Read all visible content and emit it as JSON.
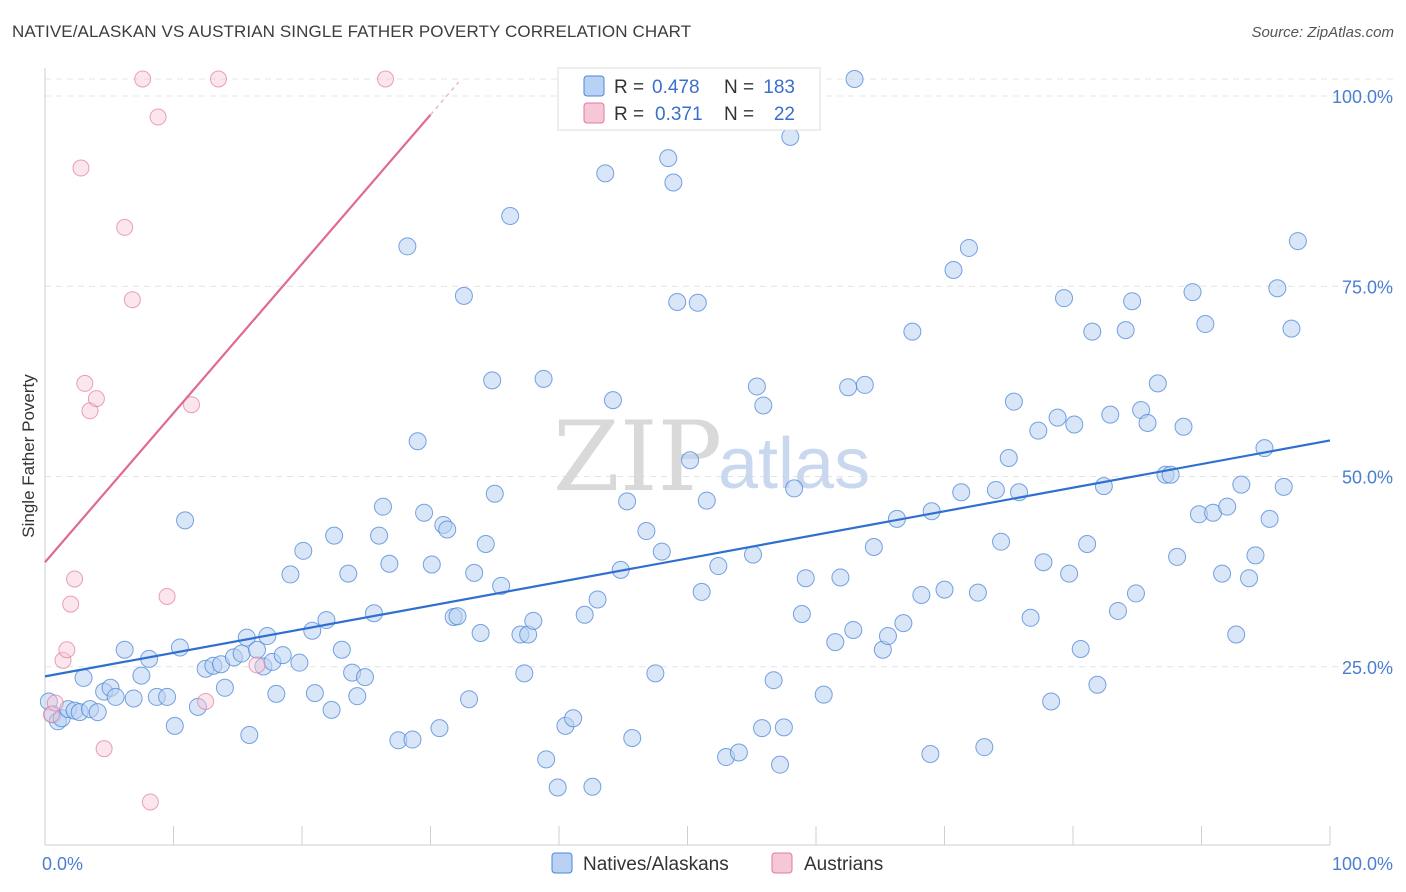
{
  "title": "NATIVE/ALASKAN VS AUSTRIAN SINGLE FATHER POVERTY CORRELATION CHART",
  "source": "Source: ZipAtlas.com",
  "watermark": {
    "zip": "ZIP",
    "atlas": "atlas"
  },
  "colors": {
    "blue": "#4a86d8",
    "blue_fill": "#b9d2f3",
    "pink": "#e07aa0",
    "pink_fill": "#f6c7d6",
    "tick_text": "#4a7fd0"
  },
  "chart_data": {
    "type": "scatter",
    "title": "NATIVE/ALASKAN VS AUSTRIAN SINGLE FATHER POVERTY CORRELATION CHART",
    "xlabel": "",
    "ylabel": "Single Father Poverty",
    "xlim": [
      0,
      100
    ],
    "ylim": [
      0,
      100
    ],
    "x_tick_labels": [
      "0.0%",
      "100.0%"
    ],
    "y_ticks": [
      25,
      50,
      75,
      100
    ],
    "y_tick_labels": [
      "25.0%",
      "50.0%",
      "75.0%",
      "100.0%"
    ],
    "grid": true,
    "legend_top": [
      {
        "r_label": "R =",
        "r_value": "0.478",
        "n_label": "N =",
        "n_value": "183"
      },
      {
        "r_label": "R =",
        "r_value": "0.371",
        "n_label": "N =",
        "n_value": "22"
      }
    ],
    "series": [
      {
        "name": "Natives/Alaskans",
        "trend": {
          "x": [
            0,
            100
          ],
          "y": [
            21.5,
            52.5
          ]
        },
        "points": [
          [
            0.3,
            18.2
          ],
          [
            0.6,
            16.5
          ],
          [
            1.0,
            15.6
          ],
          [
            1.3,
            16.0
          ],
          [
            1.8,
            17.2
          ],
          [
            2.3,
            17.0
          ],
          [
            2.7,
            16.8
          ],
          [
            3.0,
            21.3
          ],
          [
            3.5,
            17.2
          ],
          [
            4.1,
            16.8
          ],
          [
            4.6,
            19.5
          ],
          [
            5.1,
            20.0
          ],
          [
            5.5,
            18.8
          ],
          [
            6.2,
            25.0
          ],
          [
            6.9,
            18.6
          ],
          [
            7.5,
            21.6
          ],
          [
            8.1,
            23.8
          ],
          [
            8.7,
            18.8
          ],
          [
            9.5,
            18.8
          ],
          [
            10.1,
            15.0
          ],
          [
            10.5,
            25.3
          ],
          [
            10.9,
            42.0
          ],
          [
            11.9,
            17.5
          ],
          [
            12.5,
            22.5
          ],
          [
            13.1,
            22.9
          ],
          [
            13.7,
            23.1
          ],
          [
            14.0,
            20.0
          ],
          [
            14.7,
            24.0
          ],
          [
            15.3,
            24.5
          ],
          [
            15.7,
            26.6
          ],
          [
            15.9,
            13.8
          ],
          [
            16.5,
            25.0
          ],
          [
            17.0,
            22.8
          ],
          [
            17.3,
            26.8
          ],
          [
            17.7,
            23.4
          ],
          [
            18.5,
            24.3
          ],
          [
            18.0,
            19.2
          ],
          [
            19.1,
            34.9
          ],
          [
            19.8,
            23.3
          ],
          [
            20.1,
            38.0
          ],
          [
            20.8,
            27.5
          ],
          [
            21.0,
            19.3
          ],
          [
            21.9,
            28.9
          ],
          [
            22.3,
            17.1
          ],
          [
            22.5,
            40.0
          ],
          [
            23.1,
            25.0
          ],
          [
            23.6,
            35.0
          ],
          [
            23.9,
            22.0
          ],
          [
            24.3,
            18.9
          ],
          [
            24.9,
            21.4
          ],
          [
            25.6,
            29.8
          ],
          [
            26.0,
            40.0
          ],
          [
            26.3,
            43.8
          ],
          [
            26.8,
            36.3
          ],
          [
            27.5,
            13.1
          ],
          [
            28.2,
            78.0
          ],
          [
            28.6,
            13.2
          ],
          [
            29.0,
            52.4
          ],
          [
            29.5,
            43.0
          ],
          [
            30.1,
            36.2
          ],
          [
            30.7,
            14.7
          ],
          [
            31.0,
            41.4
          ],
          [
            31.3,
            40.8
          ],
          [
            31.8,
            29.3
          ],
          [
            32.1,
            29.4
          ],
          [
            32.6,
            71.5
          ],
          [
            33.0,
            18.5
          ],
          [
            33.4,
            35.1
          ],
          [
            33.9,
            27.2
          ],
          [
            34.3,
            38.9
          ],
          [
            34.8,
            60.4
          ],
          [
            35.0,
            45.5
          ],
          [
            35.5,
            33.4
          ],
          [
            36.2,
            82.0
          ],
          [
            37.0,
            27.0
          ],
          [
            37.3,
            21.9
          ],
          [
            37.6,
            27.0
          ],
          [
            38.0,
            28.8
          ],
          [
            38.8,
            60.6
          ],
          [
            39.0,
            10.6
          ],
          [
            39.9,
            6.9
          ],
          [
            40.5,
            15.0
          ],
          [
            41.1,
            16.0
          ],
          [
            42.0,
            29.6
          ],
          [
            42.6,
            7.0
          ],
          [
            43.0,
            31.6
          ],
          [
            43.6,
            87.6
          ],
          [
            44.2,
            57.8
          ],
          [
            44.8,
            35.5
          ],
          [
            45.3,
            44.5
          ],
          [
            45.7,
            13.4
          ],
          [
            46.8,
            40.6
          ],
          [
            47.5,
            21.9
          ],
          [
            48.0,
            37.9
          ],
          [
            48.5,
            89.6
          ],
          [
            48.9,
            86.4
          ],
          [
            49.2,
            70.7
          ],
          [
            50.2,
            49.9
          ],
          [
            50.8,
            70.6
          ],
          [
            51.1,
            32.6
          ],
          [
            51.5,
            44.6
          ],
          [
            52.4,
            36.0
          ],
          [
            53.0,
            10.9
          ],
          [
            54.0,
            11.5
          ],
          [
            55.1,
            37.5
          ],
          [
            55.4,
            59.6
          ],
          [
            55.8,
            14.7
          ],
          [
            55.9,
            57.1
          ],
          [
            56.7,
            21.0
          ],
          [
            57.2,
            9.9
          ],
          [
            57.5,
            14.8
          ],
          [
            58.0,
            92.4
          ],
          [
            58.3,
            46.2
          ],
          [
            58.9,
            29.7
          ],
          [
            59.2,
            34.4
          ],
          [
            60.6,
            19.1
          ],
          [
            61.5,
            26.0
          ],
          [
            61.9,
            34.5
          ],
          [
            62.5,
            59.5
          ],
          [
            62.9,
            27.6
          ],
          [
            63.0,
            100.0
          ],
          [
            63.8,
            59.8
          ],
          [
            64.5,
            38.5
          ],
          [
            65.2,
            25.0
          ],
          [
            65.6,
            26.8
          ],
          [
            66.3,
            42.2
          ],
          [
            66.8,
            28.5
          ],
          [
            67.5,
            66.8
          ],
          [
            68.2,
            32.2
          ],
          [
            68.9,
            11.3
          ],
          [
            69.0,
            43.2
          ],
          [
            70.0,
            32.9
          ],
          [
            70.7,
            74.9
          ],
          [
            71.3,
            45.7
          ],
          [
            71.9,
            77.8
          ],
          [
            72.6,
            32.5
          ],
          [
            73.1,
            12.2
          ],
          [
            74.0,
            46.0
          ],
          [
            74.4,
            39.2
          ],
          [
            75.0,
            50.2
          ],
          [
            75.4,
            57.6
          ],
          [
            75.8,
            45.7
          ],
          [
            76.7,
            29.2
          ],
          [
            77.3,
            53.8
          ],
          [
            77.7,
            36.5
          ],
          [
            78.3,
            18.2
          ],
          [
            78.8,
            55.5
          ],
          [
            79.3,
            71.2
          ],
          [
            79.7,
            35.0
          ],
          [
            80.1,
            54.6
          ],
          [
            80.6,
            25.1
          ],
          [
            81.1,
            38.9
          ],
          [
            81.5,
            66.8
          ],
          [
            81.9,
            20.4
          ],
          [
            82.4,
            46.5
          ],
          [
            82.9,
            55.9
          ],
          [
            83.5,
            30.1
          ],
          [
            84.1,
            67.0
          ],
          [
            84.6,
            70.8
          ],
          [
            84.9,
            32.4
          ],
          [
            85.3,
            56.5
          ],
          [
            85.8,
            54.8
          ],
          [
            86.6,
            60.0
          ],
          [
            87.2,
            48.0
          ],
          [
            87.6,
            48.0
          ],
          [
            88.1,
            37.2
          ],
          [
            88.6,
            54.3
          ],
          [
            89.3,
            72.0
          ],
          [
            89.8,
            42.8
          ],
          [
            90.3,
            67.8
          ],
          [
            90.9,
            43.0
          ],
          [
            91.6,
            35.0
          ],
          [
            92.0,
            43.8
          ],
          [
            92.7,
            27.0
          ],
          [
            93.1,
            46.7
          ],
          [
            93.7,
            34.4
          ],
          [
            94.2,
            37.4
          ],
          [
            94.9,
            51.5
          ],
          [
            95.3,
            42.2
          ],
          [
            95.9,
            72.5
          ],
          [
            96.4,
            46.4
          ],
          [
            97.0,
            67.2
          ],
          [
            97.5,
            78.7
          ]
        ]
      },
      {
        "name": "Austrians",
        "trend": {
          "x": [
            0,
            30
          ],
          "y": [
            36.5,
            95.3
          ]
        },
        "points": [
          [
            0.5,
            16.5
          ],
          [
            0.8,
            18.0
          ],
          [
            1.4,
            23.6
          ],
          [
            1.7,
            25.0
          ],
          [
            2.0,
            31.0
          ],
          [
            2.3,
            34.3
          ],
          [
            2.8,
            88.3
          ],
          [
            3.1,
            60.0
          ],
          [
            3.5,
            56.4
          ],
          [
            4.0,
            58.0
          ],
          [
            4.6,
            12.0
          ],
          [
            6.2,
            80.5
          ],
          [
            6.8,
            71.0
          ],
          [
            7.6,
            100.0
          ],
          [
            8.2,
            5.0
          ],
          [
            8.8,
            95.0
          ],
          [
            9.5,
            32.0
          ],
          [
            11.4,
            57.2
          ],
          [
            12.5,
            18.2
          ],
          [
            13.5,
            100.0
          ],
          [
            16.5,
            23.0
          ],
          [
            26.5,
            100.0
          ]
        ]
      }
    ]
  }
}
